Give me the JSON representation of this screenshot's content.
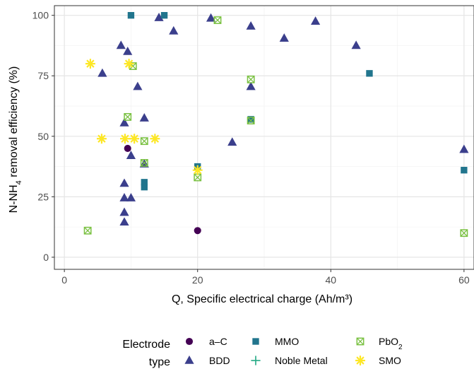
{
  "chart_data": {
    "type": "scatter",
    "xlabel": "Q, Specific electrical charge (Ah/m³)",
    "ylabel_parts": [
      "N-NH",
      "4",
      " removal efficiency (%)"
    ],
    "xlim": [
      -1.5,
      61.5
    ],
    "ylim": [
      -5,
      104
    ],
    "x_ticks": [
      0,
      20,
      40,
      60
    ],
    "y_ticks": [
      0,
      25,
      50,
      75,
      100
    ],
    "grid": true,
    "legend": {
      "position": "bottom",
      "title_lines": [
        "Electrode",
        "type"
      ],
      "entries": [
        {
          "series": "a-C",
          "parts": [
            "a–C"
          ]
        },
        {
          "series": "MMO",
          "parts": [
            "MMO"
          ]
        },
        {
          "series": "PbO2",
          "parts": [
            "PbO",
            "2"
          ]
        },
        {
          "series": "BDD",
          "parts": [
            "BDD"
          ]
        },
        {
          "series": "Noble Metal",
          "parts": [
            "Noble Metal"
          ]
        },
        {
          "series": "SMO",
          "parts": [
            "SMO"
          ]
        }
      ]
    },
    "series": [
      {
        "name": "a-C",
        "marker": "circle",
        "color": "#440154",
        "points": [
          [
            9.5,
            45
          ],
          [
            20,
            11
          ]
        ]
      },
      {
        "name": "BDD",
        "marker": "triangle",
        "color": "#3b3f8c",
        "points": [
          [
            14.2,
            99
          ],
          [
            16.4,
            93.5
          ],
          [
            22,
            98.8
          ],
          [
            28,
            95.5
          ],
          [
            33,
            90.5
          ],
          [
            37.7,
            97.5
          ],
          [
            43.8,
            87.5
          ],
          [
            8.5,
            87.5
          ],
          [
            9.5,
            85
          ],
          [
            5.7,
            76
          ],
          [
            11,
            70.5
          ],
          [
            28,
            70.5
          ],
          [
            12,
            57.5
          ],
          [
            9,
            55.5
          ],
          [
            10,
            42
          ],
          [
            12,
            38.5
          ],
          [
            9,
            30.5
          ],
          [
            9,
            24.5
          ],
          [
            10,
            24.5
          ],
          [
            9,
            18.5
          ],
          [
            9,
            14.5
          ],
          [
            25.2,
            47.5
          ],
          [
            60,
            44.5
          ]
        ]
      },
      {
        "name": "MMO",
        "marker": "square",
        "color": "#21758d",
        "points": [
          [
            10,
            100
          ],
          [
            15,
            100
          ],
          [
            45.8,
            76
          ],
          [
            28,
            57
          ],
          [
            20,
            37.5
          ],
          [
            12,
            31
          ],
          [
            12,
            29
          ],
          [
            60,
            36
          ]
        ]
      },
      {
        "name": "PbO2",
        "marker": "square-x",
        "color": "#7ac142",
        "points": [
          [
            23,
            98
          ],
          [
            10.3,
            79
          ],
          [
            28,
            73.5
          ],
          [
            9.5,
            58
          ],
          [
            12,
            48
          ],
          [
            28,
            56.5
          ],
          [
            12,
            39
          ],
          [
            20,
            33
          ],
          [
            3.5,
            11
          ],
          [
            60,
            10
          ]
        ]
      },
      {
        "name": "Noble Metal",
        "marker": "plus",
        "color": "#22a884",
        "points": []
      },
      {
        "name": "SMO",
        "marker": "asterisk",
        "color": "#fde725",
        "points": [
          [
            3.9,
            80
          ],
          [
            9.7,
            80
          ],
          [
            5.6,
            49
          ],
          [
            9.1,
            49
          ],
          [
            10.5,
            49
          ],
          [
            13.6,
            49
          ],
          [
            20,
            36
          ]
        ]
      }
    ]
  }
}
